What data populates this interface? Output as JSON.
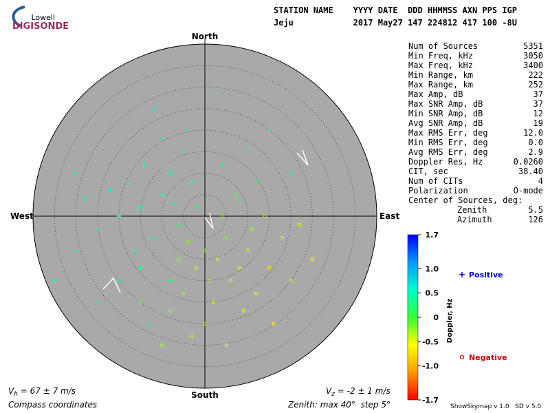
{
  "chart_data": {
    "type": "skymap",
    "logo": {
      "top": "Lowell",
      "bottom": "DIGISONDE"
    },
    "header": {
      "line1": "STATION NAME    YYYY DATE  DDD HHMMSS AXN PPS IGP",
      "line2": "Jeju            2017 May27 147 224812 417 100 -8U"
    },
    "directions": {
      "north": "North",
      "south": "South",
      "east": "East",
      "west": "West"
    },
    "rlim": [
      0,
      40
    ],
    "rticks": [
      5,
      10,
      15,
      20,
      25,
      30,
      35
    ],
    "background": "#a9a9a9",
    "stats": [
      [
        "Num of Sources",
        "5351"
      ],
      [
        "Min Freq, kHz",
        "3050"
      ],
      [
        "Max Freq, kHz",
        "3400"
      ],
      [
        "Min Range, km",
        "222"
      ],
      [
        "Max Range, km",
        "252"
      ],
      [
        "Max Amp, dB",
        "37"
      ],
      [
        "Max SNR Amp, dB",
        "37"
      ],
      [
        "Min SNR Amp, dB",
        "12"
      ],
      [
        "Avg SNR Amp, dB",
        "19"
      ],
      [
        "Max RMS Err, deg",
        "12.0"
      ],
      [
        "Min RMS Err, deg",
        "0.0"
      ],
      [
        "Avg RMS Err, deg",
        "2.9"
      ],
      [
        "Doppler Res, Hz",
        "0.0260"
      ],
      [
        "CIT, sec",
        "38.40"
      ],
      [
        "Num of CITs",
        "4"
      ],
      [
        "Polarization",
        "O-mode"
      ]
    ],
    "center_title": "Center of Sources, deg:",
    "center": [
      [
        "Zenith",
        "5.5"
      ],
      [
        "Azimuth",
        "126"
      ]
    ],
    "colorbar_label": "Doppler, Hz",
    "clim": [
      -1.7,
      1.7
    ],
    "cticks": [
      1.7,
      {
        "value": 1,
        "label": "1.0"
      },
      0.5,
      0,
      -0.5,
      {
        "value": -1,
        "label": "-1.0"
      },
      -1.7
    ],
    "colormap": [
      "#ff0000",
      "#ff9900",
      "#ffff00",
      "#33ff33",
      "#00ffcc",
      "#0099ff",
      "#0000ff"
    ],
    "legend": [
      {
        "name": "Positive",
        "color": "#0000cc"
      },
      {
        "name": "Negative",
        "color": "#cc0000"
      }
    ],
    "east": [
      -10,
      -15,
      -8,
      -20,
      -5,
      -12,
      -18,
      -3,
      -25,
      -14,
      -7,
      -22,
      -10,
      -16,
      -28,
      -4,
      -12,
      -30,
      -20,
      -2,
      4,
      10,
      15,
      2,
      -8,
      -25,
      -30,
      -6,
      8,
      -15,
      12,
      20,
      -35,
      -13,
      0,
      3,
      -2,
      5,
      8,
      -5,
      2,
      10,
      12,
      -4,
      6,
      15,
      0,
      -8,
      9,
      18,
      4,
      7,
      14,
      20,
      -3,
      5,
      -10,
      16,
      22,
      1,
      -6,
      11,
      25,
      -15
    ],
    "north": [
      5,
      2,
      10,
      0,
      15,
      -5,
      8,
      8,
      -3,
      12,
      3,
      6,
      18,
      -8,
      4,
      20,
      25,
      -8,
      -15,
      2,
      12,
      15,
      20,
      28,
      -15,
      -20,
      10,
      -2,
      4,
      -12,
      8,
      10,
      -15,
      -25,
      -8,
      -10,
      -12,
      -5,
      -12,
      -18,
      -20,
      -8,
      -18,
      -6,
      -15,
      -12,
      -25,
      -22,
      -22,
      -5,
      0,
      5,
      0,
      -15,
      -28,
      -30,
      -30,
      -25,
      -2,
      -15,
      -10,
      -3,
      -10,
      -20
    ],
    "doppler": [
      0.5,
      0.6,
      0.4,
      0.5,
      0.3,
      0.4,
      0.6,
      0.3,
      0.5,
      0.5,
      0.3,
      0.6,
      0.4,
      0.3,
      0.5,
      0.5,
      0.6,
      0.4,
      0.3,
      0.2,
      0.3,
      0.4,
      0.5,
      0.6,
      0.2,
      0.4,
      0.5,
      0.3,
      0.2,
      0.3,
      0.25,
      0.3,
      0.5,
      0.4,
      -0.3,
      -0.5,
      -0.4,
      -0.2,
      -0.6,
      -0.3,
      -0.5,
      -0.4,
      -0.6,
      -0.2,
      -0.5,
      -0.7,
      -0.4,
      -0.3,
      -0.5,
      -0.4,
      -0.2,
      -0.1,
      -0.3,
      -0.6,
      -0.4,
      -0.5,
      -0.3,
      -0.7,
      -0.5,
      -0.35,
      -0.25,
      -0.3,
      -0.6,
      -0.2
    ],
    "vh": {
      "symbol": "V",
      "sub": "h",
      "text": " = 67 ± 7 m/s"
    },
    "vz": {
      "symbol": "V",
      "sub": "z",
      "text": " = -2 ± 1 m/s"
    },
    "coords_note": "Compass coordinates",
    "zenith_note": "Zenith: max 40°  step 5°",
    "version": "ShowSkymap v 1.0   SD v 5.0"
  }
}
